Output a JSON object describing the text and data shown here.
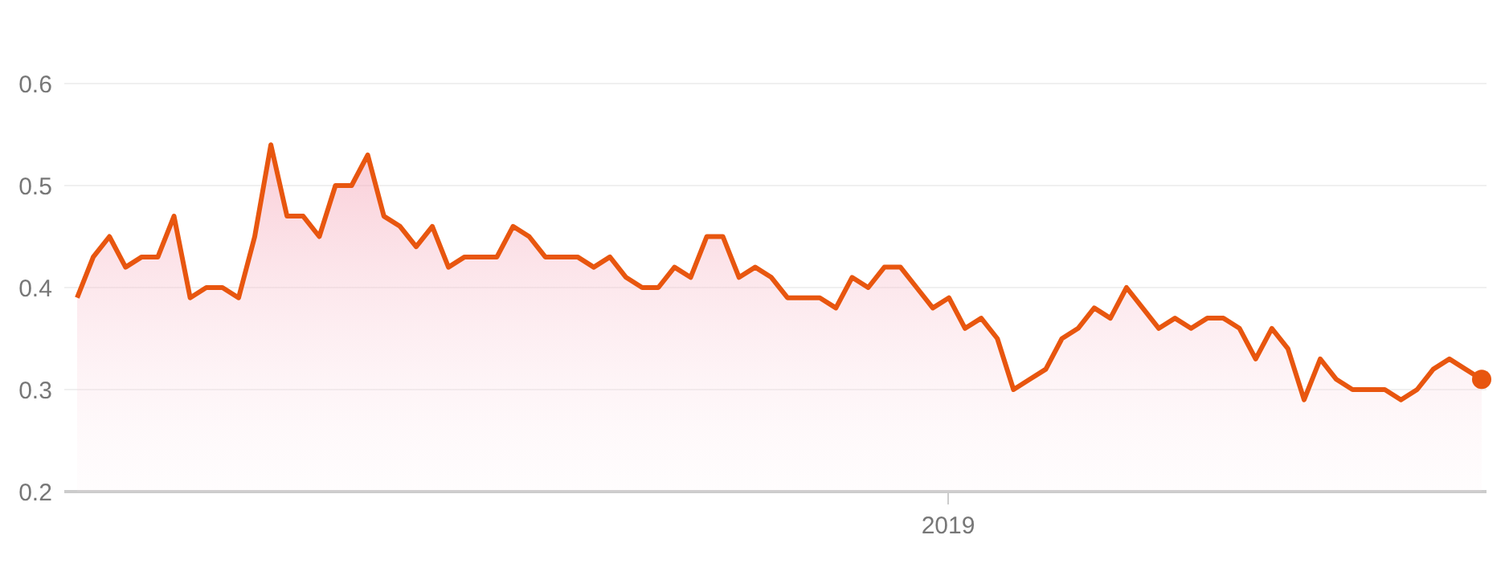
{
  "chart_data": {
    "type": "area",
    "color": "#e8560f",
    "grid": "y",
    "marker": "none",
    "categories": [
      null,
      null,
      null,
      null,
      null,
      null,
      null,
      null,
      null,
      null,
      null,
      null,
      null,
      null,
      null,
      null,
      null,
      null,
      null,
      null,
      null,
      null,
      null,
      null,
      null,
      null,
      null,
      null,
      null,
      null,
      null,
      null,
      null,
      null,
      null,
      null,
      null,
      null,
      null,
      null,
      null,
      null,
      null,
      null,
      null,
      null,
      null,
      null,
      null,
      null,
      null,
      null,
      null,
      null,
      null,
      null,
      null,
      null,
      null,
      null,
      null,
      null,
      null,
      null,
      null,
      null,
      null,
      null,
      null,
      null,
      null,
      null,
      null,
      null,
      null,
      null,
      null,
      null,
      null,
      null,
      null,
      null,
      null,
      null,
      null,
      null,
      null,
      null
    ],
    "values": [
      0.39,
      0.43,
      0.45,
      0.42,
      0.43,
      0.43,
      0.47,
      0.39,
      0.4,
      0.4,
      0.39,
      0.45,
      0.54,
      0.47,
      0.47,
      0.45,
      0.5,
      0.5,
      0.53,
      0.47,
      0.46,
      0.44,
      0.46,
      0.42,
      0.43,
      0.43,
      0.43,
      0.46,
      0.45,
      0.43,
      0.43,
      0.43,
      0.42,
      0.43,
      0.41,
      0.4,
      0.4,
      0.42,
      0.41,
      0.45,
      0.45,
      0.41,
      0.42,
      0.41,
      0.39,
      0.39,
      0.39,
      0.38,
      0.41,
      0.4,
      0.42,
      0.42,
      0.4,
      0.38,
      0.39,
      0.36,
      0.37,
      0.35,
      0.3,
      0.31,
      0.32,
      0.35,
      0.36,
      0.38,
      0.37,
      0.4,
      0.38,
      0.36,
      0.37,
      0.36,
      0.37,
      0.37,
      0.36,
      0.33,
      0.36,
      0.34,
      0.29,
      0.33,
      0.31,
      0.3,
      0.3,
      0.3,
      0.29,
      0.3,
      0.32,
      0.33,
      0.32,
      0.31
    ],
    "annotations": [
      "2019"
    ],
    "ylim": [
      0.2,
      0.6
    ],
    "yticks": [
      0.2,
      0.3,
      0.4,
      0.5,
      0.6
    ]
  }
}
